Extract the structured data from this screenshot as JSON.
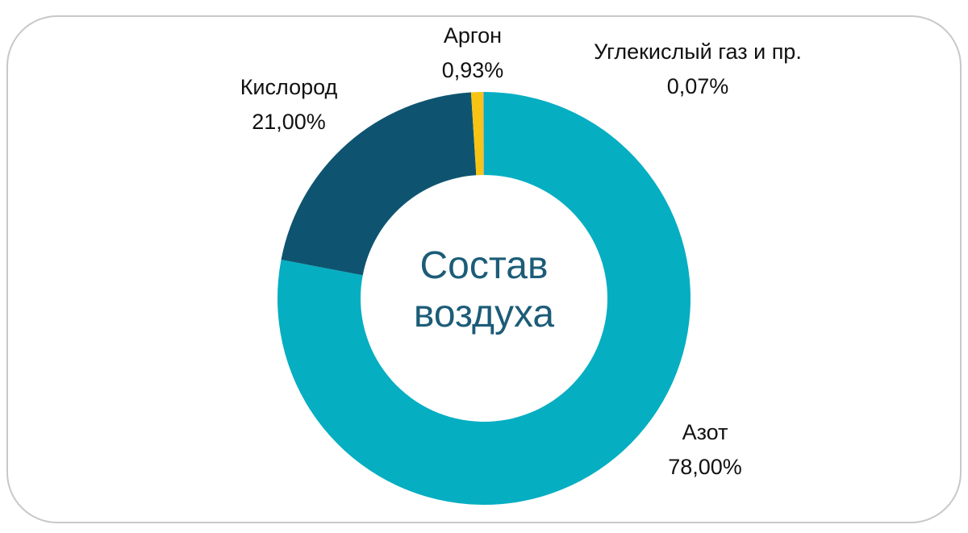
{
  "chart_data": {
    "type": "donut",
    "title": "Состав воздуха",
    "categories": [
      "Азот",
      "Кислород",
      "Аргон",
      "Углекислый газ и пр."
    ],
    "values": [
      78,
      21,
      0.93,
      0.07
    ],
    "value_labels": [
      "78,00%",
      "21,00%",
      "0,93%",
      "0,07%"
    ],
    "colors": [
      "#06aec2",
      "#0e5470",
      "#f7c414",
      "#9aa5ad"
    ]
  }
}
